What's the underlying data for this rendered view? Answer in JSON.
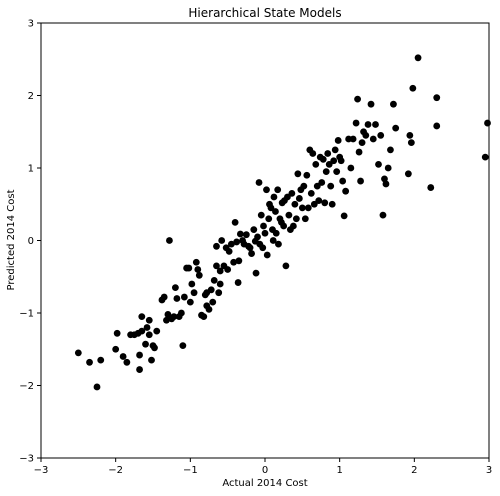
{
  "chart_data": {
    "type": "scatter",
    "title": "Hierarchical State Models",
    "xlabel": "Actual 2014 Cost",
    "ylabel": "Predicted 2014 Cost",
    "xlim": [
      -3,
      3
    ],
    "ylim": [
      -3,
      3
    ],
    "xticks": [
      -3,
      -2,
      -1,
      0,
      1,
      2,
      3
    ],
    "yticks": [
      -3,
      -2,
      -1,
      0,
      1,
      2,
      3
    ],
    "grid": false,
    "legend": "none",
    "marker_color": "#000000",
    "series": [
      {
        "points": [
          [
            -2.5,
            -1.55
          ],
          [
            -2.35,
            -1.68
          ],
          [
            -2.25,
            -2.02
          ],
          [
            -2.2,
            -1.65
          ],
          [
            -2.0,
            -1.5
          ],
          [
            -1.98,
            -1.28
          ],
          [
            -1.9,
            -1.6
          ],
          [
            -1.85,
            -1.68
          ],
          [
            -1.8,
            -1.3
          ],
          [
            -1.75,
            -1.3
          ],
          [
            -1.7,
            -1.28
          ],
          [
            -1.68,
            -1.58
          ],
          [
            -1.68,
            -1.78
          ],
          [
            -1.65,
            -1.25
          ],
          [
            -1.65,
            -1.05
          ],
          [
            -1.6,
            -1.43
          ],
          [
            -1.58,
            -1.2
          ],
          [
            -1.55,
            -1.1
          ],
          [
            -1.55,
            -1.3
          ],
          [
            -1.52,
            -1.65
          ],
          [
            -1.5,
            -1.45
          ],
          [
            -1.48,
            -1.48
          ],
          [
            -1.45,
            -1.25
          ],
          [
            -1.38,
            -0.82
          ],
          [
            -1.35,
            -0.78
          ],
          [
            -1.32,
            -1.1
          ],
          [
            -1.3,
            -1.02
          ],
          [
            -1.28,
            -0.0
          ],
          [
            -1.25,
            -1.08
          ],
          [
            -1.22,
            -1.05
          ],
          [
            -1.2,
            -0.65
          ],
          [
            -1.18,
            -0.8
          ],
          [
            -1.15,
            -1.05
          ],
          [
            -1.12,
            -1.0
          ],
          [
            -1.1,
            -1.45
          ],
          [
            -1.08,
            -0.78
          ],
          [
            -1.05,
            -0.38
          ],
          [
            -1.02,
            -0.38
          ],
          [
            -1.0,
            -0.85
          ],
          [
            -0.98,
            -0.6
          ],
          [
            -0.95,
            -0.72
          ],
          [
            -0.92,
            -0.3
          ],
          [
            -0.9,
            -0.4
          ],
          [
            -0.88,
            -0.48
          ],
          [
            -0.85,
            -1.03
          ],
          [
            -0.82,
            -1.05
          ],
          [
            -0.8,
            -0.75
          ],
          [
            -0.78,
            -0.72
          ],
          [
            -0.78,
            -0.9
          ],
          [
            -0.75,
            -0.95
          ],
          [
            -0.72,
            -0.68
          ],
          [
            -0.7,
            -0.85
          ],
          [
            -0.68,
            -0.55
          ],
          [
            -0.65,
            -0.08
          ],
          [
            -0.65,
            -0.35
          ],
          [
            -0.62,
            -0.72
          ],
          [
            -0.6,
            -0.6
          ],
          [
            -0.6,
            -0.42
          ],
          [
            -0.58,
            -0.0
          ],
          [
            -0.55,
            -0.35
          ],
          [
            -0.52,
            -0.1
          ],
          [
            -0.5,
            -0.4
          ],
          [
            -0.48,
            -0.15
          ],
          [
            -0.45,
            -0.05
          ],
          [
            -0.42,
            -0.3
          ],
          [
            -0.4,
            0.25
          ],
          [
            -0.38,
            -0.02
          ],
          [
            -0.36,
            -0.58
          ],
          [
            -0.35,
            -0.28
          ],
          [
            -0.33,
            0.09
          ],
          [
            -0.3,
            -0.0
          ],
          [
            -0.28,
            -0.05
          ],
          [
            -0.25,
            0.08
          ],
          [
            -0.22,
            -0.08
          ],
          [
            -0.2,
            -0.1
          ],
          [
            -0.18,
            -0.18
          ],
          [
            -0.15,
            0.15
          ],
          [
            -0.13,
            -0.01
          ],
          [
            -0.12,
            -0.45
          ],
          [
            -0.1,
            0.05
          ],
          [
            -0.08,
            0.8
          ],
          [
            -0.07,
            -0.05
          ],
          [
            -0.05,
            0.35
          ],
          [
            -0.03,
            -0.1
          ],
          [
            -0.02,
            0.2
          ],
          [
            0.0,
            0.1
          ],
          [
            0.02,
            0.7
          ],
          [
            0.03,
            -0.2
          ],
          [
            0.05,
            0.3
          ],
          [
            0.06,
            0.5
          ],
          [
            0.08,
            0.45
          ],
          [
            0.1,
            0.15
          ],
          [
            0.11,
            0.0
          ],
          [
            0.12,
            0.6
          ],
          [
            0.14,
            0.4
          ],
          [
            0.15,
            0.1
          ],
          [
            0.17,
            0.7
          ],
          [
            0.18,
            -0.05
          ],
          [
            0.2,
            0.3
          ],
          [
            0.22,
            0.25
          ],
          [
            0.23,
            0.52
          ],
          [
            0.25,
            0.2
          ],
          [
            0.26,
            0.55
          ],
          [
            0.28,
            -0.35
          ],
          [
            0.3,
            0.6
          ],
          [
            0.32,
            0.35
          ],
          [
            0.34,
            0.15
          ],
          [
            0.36,
            0.65
          ],
          [
            0.38,
            0.2
          ],
          [
            0.4,
            0.5
          ],
          [
            0.42,
            0.3
          ],
          [
            0.44,
            0.92
          ],
          [
            0.46,
            0.58
          ],
          [
            0.48,
            0.7
          ],
          [
            0.5,
            0.45
          ],
          [
            0.52,
            0.75
          ],
          [
            0.54,
            0.3
          ],
          [
            0.56,
            0.9
          ],
          [
            0.58,
            0.45
          ],
          [
            0.6,
            1.25
          ],
          [
            0.62,
            0.65
          ],
          [
            0.64,
            1.2
          ],
          [
            0.66,
            0.5
          ],
          [
            0.68,
            1.05
          ],
          [
            0.7,
            0.75
          ],
          [
            0.72,
            0.55
          ],
          [
            0.74,
            1.15
          ],
          [
            0.76,
            0.8
          ],
          [
            0.78,
            1.12
          ],
          [
            0.8,
            0.52
          ],
          [
            0.82,
            0.95
          ],
          [
            0.84,
            1.2
          ],
          [
            0.86,
            1.05
          ],
          [
            0.88,
            0.75
          ],
          [
            0.9,
            0.5
          ],
          [
            0.92,
            1.1
          ],
          [
            0.94,
            1.25
          ],
          [
            0.96,
            0.95
          ],
          [
            0.98,
            1.38
          ],
          [
            1.0,
            1.15
          ],
          [
            1.02,
            1.1
          ],
          [
            1.04,
            0.82
          ],
          [
            1.06,
            0.34
          ],
          [
            1.08,
            0.68
          ],
          [
            1.12,
            1.4
          ],
          [
            1.15,
            1.0
          ],
          [
            1.18,
            1.4
          ],
          [
            1.22,
            1.62
          ],
          [
            1.24,
            1.95
          ],
          [
            1.26,
            1.22
          ],
          [
            1.28,
            0.82
          ],
          [
            1.3,
            1.35
          ],
          [
            1.32,
            1.5
          ],
          [
            1.35,
            1.45
          ],
          [
            1.38,
            1.6
          ],
          [
            1.42,
            1.88
          ],
          [
            1.45,
            1.4
          ],
          [
            1.48,
            1.6
          ],
          [
            1.52,
            1.05
          ],
          [
            1.55,
            1.45
          ],
          [
            1.58,
            0.35
          ],
          [
            1.6,
            0.85
          ],
          [
            1.62,
            0.78
          ],
          [
            1.65,
            1.0
          ],
          [
            1.68,
            1.25
          ],
          [
            1.72,
            1.88
          ],
          [
            1.75,
            1.55
          ],
          [
            1.92,
            0.92
          ],
          [
            1.94,
            1.45
          ],
          [
            1.96,
            1.35
          ],
          [
            1.98,
            2.1
          ],
          [
            2.05,
            2.52
          ],
          [
            2.22,
            0.73
          ],
          [
            2.3,
            1.58
          ],
          [
            2.3,
            1.97
          ],
          [
            2.95,
            1.15
          ],
          [
            2.98,
            1.62
          ]
        ]
      }
    ]
  }
}
